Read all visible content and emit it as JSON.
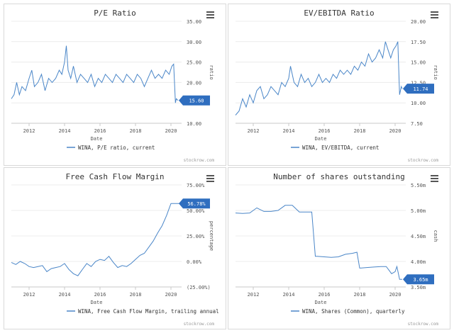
{
  "source_label": "stockrow.com",
  "colors": {
    "line": "#4a86c8",
    "badge": "#2f6ebf",
    "axis": "#c8c8c8",
    "text": "#555555",
    "title": "#333333"
  },
  "menu_icon": "hamburger-menu-icon",
  "chart_data": [
    {
      "type": "line",
      "title": "P/E Ratio",
      "xlabel": "Date",
      "ylabel": "ratio",
      "y_axis_side": "right",
      "x_ticks": [
        "2012",
        "2014",
        "2016",
        "2018",
        "2020"
      ],
      "xlim": [
        2011.0,
        2020.6
      ],
      "y_ticks": [
        "10.00",
        "15.00",
        "20.00",
        "25.00",
        "30.00",
        "35.00"
      ],
      "ylim": [
        10,
        35
      ],
      "current_value": "15.60",
      "series": [
        {
          "name": "WINA, P/E ratio, current",
          "x": [
            2011.0,
            2011.15,
            2011.3,
            2011.45,
            2011.6,
            2011.8,
            2012.0,
            2012.15,
            2012.3,
            2012.5,
            2012.7,
            2012.9,
            2013.1,
            2013.3,
            2013.5,
            2013.7,
            2013.85,
            2014.0,
            2014.1,
            2014.2,
            2014.35,
            2014.5,
            2014.7,
            2014.9,
            2015.1,
            2015.3,
            2015.5,
            2015.7,
            2015.9,
            2016.1,
            2016.3,
            2016.5,
            2016.7,
            2016.9,
            2017.1,
            2017.3,
            2017.5,
            2017.7,
            2017.9,
            2018.1,
            2018.3,
            2018.5,
            2018.7,
            2018.9,
            2019.1,
            2019.3,
            2019.5,
            2019.7,
            2019.9,
            2020.05,
            2020.15,
            2020.25,
            2020.3,
            2020.4
          ],
          "y": [
            16,
            17,
            20,
            17,
            19,
            18,
            21,
            23,
            19,
            20,
            22,
            18,
            21,
            20,
            21,
            23,
            22,
            25,
            29,
            23,
            21,
            24,
            20,
            22,
            21,
            20,
            22,
            19,
            21,
            20,
            22,
            21,
            20,
            22,
            21,
            20,
            22,
            21,
            20,
            22,
            21,
            19,
            21,
            23,
            21,
            22,
            21,
            23,
            22,
            24,
            24.5,
            15,
            16,
            15.6
          ]
        }
      ]
    },
    {
      "type": "line",
      "title": "EV/EBITDA Ratio",
      "xlabel": "Date",
      "ylabel": "ratio",
      "y_axis_side": "right",
      "x_ticks": [
        "2012",
        "2014",
        "2016",
        "2018",
        "2020"
      ],
      "xlim": [
        2011.0,
        2020.6
      ],
      "y_ticks": [
        "7.50",
        "10.00",
        "12.50",
        "15.00",
        "17.50",
        "20.00"
      ],
      "ylim": [
        7.5,
        20
      ],
      "current_value": "11.74",
      "series": [
        {
          "name": "WINA, EV/EBITDA, current",
          "x": [
            2011.0,
            2011.2,
            2011.4,
            2011.6,
            2011.8,
            2012.0,
            2012.2,
            2012.4,
            2012.6,
            2012.8,
            2013.0,
            2013.2,
            2013.4,
            2013.6,
            2013.8,
            2014.0,
            2014.1,
            2014.3,
            2014.5,
            2014.7,
            2014.9,
            2015.1,
            2015.3,
            2015.5,
            2015.7,
            2015.9,
            2016.1,
            2016.3,
            2016.5,
            2016.7,
            2016.9,
            2017.1,
            2017.3,
            2017.5,
            2017.7,
            2017.9,
            2018.1,
            2018.3,
            2018.5,
            2018.7,
            2018.9,
            2019.1,
            2019.3,
            2019.45,
            2019.6,
            2019.75,
            2019.9,
            2020.05,
            2020.15,
            2020.25,
            2020.35,
            2020.4
          ],
          "y": [
            8.5,
            9,
            10.5,
            9.5,
            11,
            10,
            11.5,
            12,
            10.5,
            11,
            12,
            11.5,
            11,
            12.5,
            12,
            13,
            14.5,
            12.5,
            12,
            13.5,
            12.5,
            13,
            12,
            12.5,
            13.5,
            12.5,
            13,
            12.5,
            13.5,
            13,
            14,
            13.5,
            14,
            13.5,
            14.5,
            14,
            15,
            14.5,
            16,
            15,
            15.5,
            16.5,
            15.5,
            17.5,
            16.5,
            15.5,
            16.5,
            17,
            17.5,
            11,
            12,
            11.74
          ]
        }
      ]
    },
    {
      "type": "line",
      "title": "Free Cash Flow Margin",
      "xlabel": "Date",
      "ylabel": "percentage",
      "y_axis_side": "right",
      "x_ticks": [
        "2012",
        "2014",
        "2016",
        "2018",
        "2020"
      ],
      "xlim": [
        2011.0,
        2020.6
      ],
      "y_ticks": [
        "(25.00%)",
        "0.00%",
        "25.00%",
        "50.00%",
        "75.00%"
      ],
      "ylim": [
        -25,
        75
      ],
      "current_value": "56.78%",
      "series": [
        {
          "name": "WINA, Free Cash Flow Margin, trailing annual",
          "x": [
            2011.0,
            2011.25,
            2011.5,
            2011.75,
            2012.0,
            2012.25,
            2012.5,
            2012.75,
            2013.0,
            2013.25,
            2013.5,
            2013.75,
            2014.0,
            2014.25,
            2014.5,
            2014.75,
            2015.0,
            2015.25,
            2015.5,
            2015.75,
            2016.0,
            2016.25,
            2016.5,
            2016.75,
            2017.0,
            2017.25,
            2017.5,
            2017.75,
            2018.0,
            2018.25,
            2018.5,
            2018.75,
            2019.0,
            2019.25,
            2019.5,
            2019.75,
            2020.0,
            2020.25,
            2020.5
          ],
          "y": [
            -1,
            -3,
            0,
            -2,
            -5,
            -6,
            -5,
            -4,
            -10,
            -7,
            -6,
            -5,
            -2,
            -8,
            -12,
            -14,
            -8,
            -2,
            -5,
            0,
            2,
            1,
            5,
            -1,
            -6,
            -4,
            -5,
            -2,
            2,
            6,
            8,
            14,
            20,
            28,
            35,
            45,
            56.78,
            56.78,
            56.78
          ]
        }
      ]
    },
    {
      "type": "line",
      "title": "Number of shares outstanding",
      "xlabel": "Date",
      "ylabel": "cash",
      "y_axis_side": "right",
      "x_ticks": [
        "2012",
        "2014",
        "2016",
        "2018",
        "2020"
      ],
      "xlim": [
        2011.0,
        2020.6
      ],
      "y_ticks": [
        "3.50m",
        "4.00m",
        "4.50m",
        "5.00m",
        "5.50m"
      ],
      "ylim": [
        3.5,
        5.5
      ],
      "current_value": "3.65m",
      "series": [
        {
          "name": "WINA, Shares (Common), quarterly",
          "x": [
            2011.0,
            2011.4,
            2011.8,
            2012.2,
            2012.6,
            2013.0,
            2013.4,
            2013.8,
            2014.2,
            2014.6,
            2015.0,
            2015.3,
            2015.5,
            2015.6,
            2016.0,
            2016.4,
            2016.8,
            2017.2,
            2017.6,
            2017.85,
            2018.0,
            2018.4,
            2018.8,
            2019.2,
            2019.5,
            2019.8,
            2020.0,
            2020.1,
            2020.25,
            2020.4
          ],
          "y": [
            4.95,
            4.94,
            4.95,
            5.05,
            4.98,
            4.98,
            5.0,
            5.1,
            5.1,
            4.97,
            4.97,
            4.97,
            4.1,
            4.1,
            4.09,
            4.08,
            4.09,
            4.14,
            4.16,
            4.18,
            3.87,
            3.88,
            3.89,
            3.9,
            3.9,
            3.76,
            3.8,
            3.9,
            3.65,
            3.65
          ]
        }
      ]
    }
  ]
}
